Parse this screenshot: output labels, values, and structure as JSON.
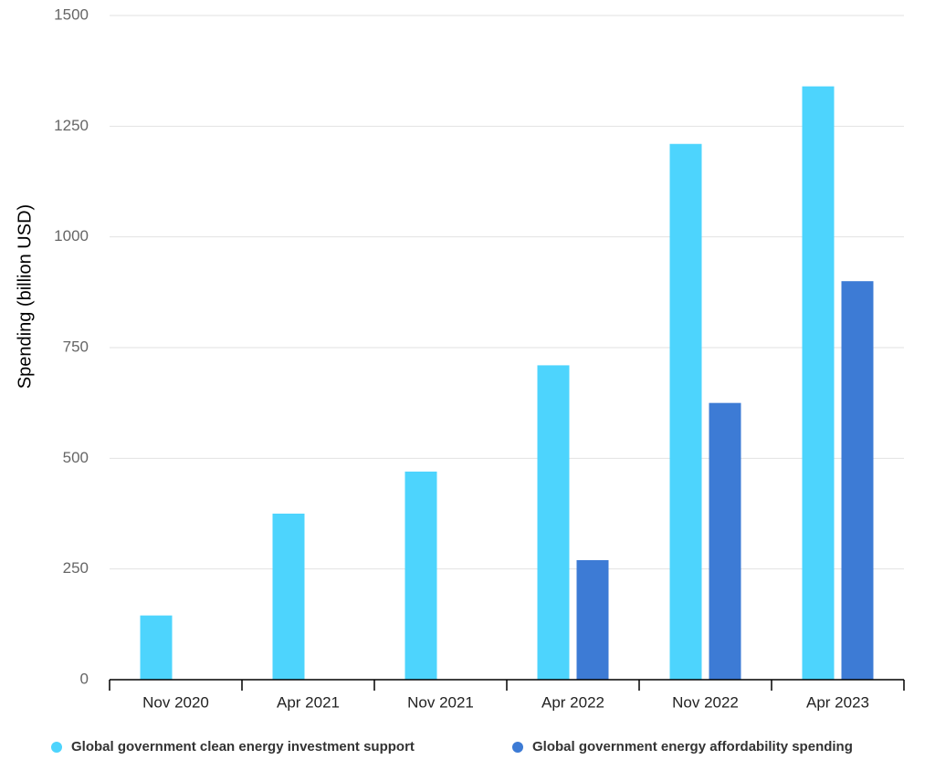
{
  "chart_data": {
    "type": "bar",
    "y_label": "Spending (billion USD)",
    "categories": [
      "Nov 2020",
      "Apr 2021",
      "Nov 2021",
      "Apr 2022",
      "Nov 2022",
      "Apr 2023"
    ],
    "series": [
      {
        "name": "Global government clean energy investment support",
        "color": "#4dd4fd",
        "values": [
          145,
          375,
          470,
          710,
          1210,
          1340
        ]
      },
      {
        "name": "Global government energy affordability spending",
        "color": "#3d7bd5",
        "values": [
          null,
          null,
          null,
          270,
          625,
          900
        ]
      }
    ],
    "ylim": [
      0,
      1500
    ],
    "yticks": [
      0,
      250,
      500,
      750,
      1000,
      1250,
      1500
    ],
    "grid": true
  }
}
